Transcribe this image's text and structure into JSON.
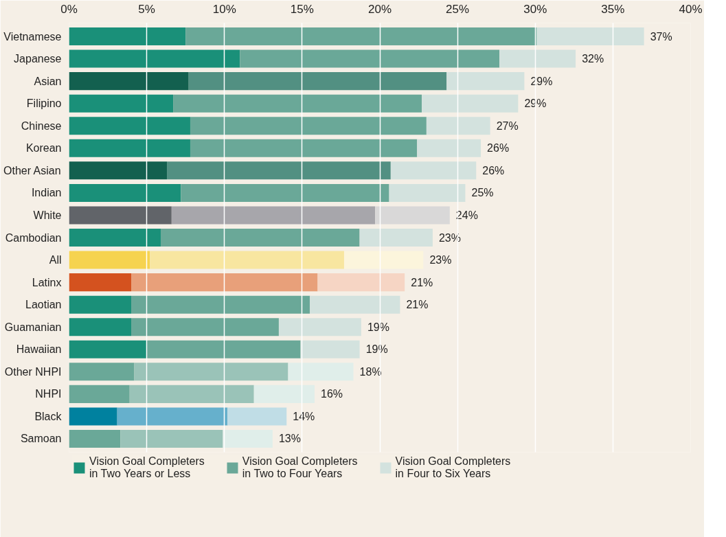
{
  "chart_data": {
    "type": "bar",
    "orientation": "horizontal",
    "stacked": true,
    "categories": [
      "Vietnamese",
      "Japanese",
      "Asian",
      "Filipino",
      "Chinese",
      "Korean",
      "Other Asian",
      "Indian",
      "White",
      "Cambodian",
      "All",
      "Latinx",
      "Laotian",
      "Guamanian",
      "Hawaiian",
      "Other NHPI",
      "NHPI",
      "Black",
      "Samoan"
    ],
    "series": [
      {
        "name": "Vision Goal Completers in Two Years or Less",
        "color": "#1a9079",
        "values": [
          7.5,
          11.0,
          7.7,
          6.7,
          7.8,
          7.8,
          6.3,
          7.2,
          6.6,
          5.9,
          5.2,
          4.0,
          4.0,
          4.0,
          5.0,
          4.2,
          3.9,
          3.1,
          3.3
        ],
        "colors": [
          "#1a9079",
          "#1a9079",
          "#13604f",
          "#1a9079",
          "#1a9079",
          "#1a9079",
          "#13604f",
          "#1a9079",
          "#616469",
          "#1a9079",
          "#f6d34f",
          "#d4521f",
          "#1a9079",
          "#1a9079",
          "#1a9079",
          "#6aa898",
          "#6aa898",
          "#00819f",
          "#6aa898"
        ]
      },
      {
        "name": "Vision Goal Completers in Two to Four Years",
        "color": "#6aa898",
        "values": [
          22.6,
          16.7,
          16.6,
          16.0,
          15.2,
          14.6,
          14.4,
          13.4,
          13.1,
          12.8,
          12.5,
          12.0,
          11.5,
          9.5,
          9.9,
          9.9,
          8.0,
          7.1,
          6.6
        ],
        "colors": [
          "#6aa898",
          "#6aa898",
          "#529082",
          "#6aa898",
          "#6aa898",
          "#6aa898",
          "#529082",
          "#6aa898",
          "#a7a6ab",
          "#6aa898",
          "#f8e6a0",
          "#e8a07a",
          "#6aa898",
          "#6aa898",
          "#6aa898",
          "#9ac3b8",
          "#9ac3b8",
          "#66b0cc",
          "#9ac3b8"
        ]
      },
      {
        "name": "Vision Goal Completers in Four to Six Years",
        "color": "#d3e2de",
        "values": [
          6.9,
          4.9,
          5.0,
          6.2,
          4.1,
          4.1,
          5.5,
          4.9,
          4.8,
          4.7,
          5.1,
          5.6,
          5.8,
          5.3,
          3.8,
          4.2,
          3.9,
          3.8,
          3.2
        ],
        "colors": [
          "#d3e2de",
          "#d3e2de",
          "#d3e2de",
          "#d3e2de",
          "#d3e2de",
          "#d3e2de",
          "#d3e2de",
          "#d3e2de",
          "#d9d8d8",
          "#d3e2de",
          "#fcf5dc",
          "#f6d5c4",
          "#d3e2de",
          "#d3e2de",
          "#d3e2de",
          "#e0eeea",
          "#e0eeea",
          "#c0dde6",
          "#e0eeea"
        ]
      }
    ],
    "totals": [
      "37%",
      "32%",
      "29%",
      "29%",
      "27%",
      "26%",
      "26%",
      "25%",
      "24%",
      "23%",
      "23%",
      "21%",
      "21%",
      "19%",
      "19%",
      "18%",
      "16%",
      "14%",
      "13%"
    ],
    "xlim": [
      0,
      40
    ],
    "xticks": [
      {
        "value": 0,
        "label": "0%"
      },
      {
        "value": 5,
        "label": "5%"
      },
      {
        "value": 10,
        "label": "10%"
      },
      {
        "value": 15,
        "label": "15%"
      },
      {
        "value": 20,
        "label": "20%"
      },
      {
        "value": 25,
        "label": "25%"
      },
      {
        "value": 30,
        "label": "30%"
      },
      {
        "value": 35,
        "label": "35%"
      },
      {
        "value": 40,
        "label": "40%"
      }
    ],
    "grid": "x",
    "legend": "bottom"
  }
}
